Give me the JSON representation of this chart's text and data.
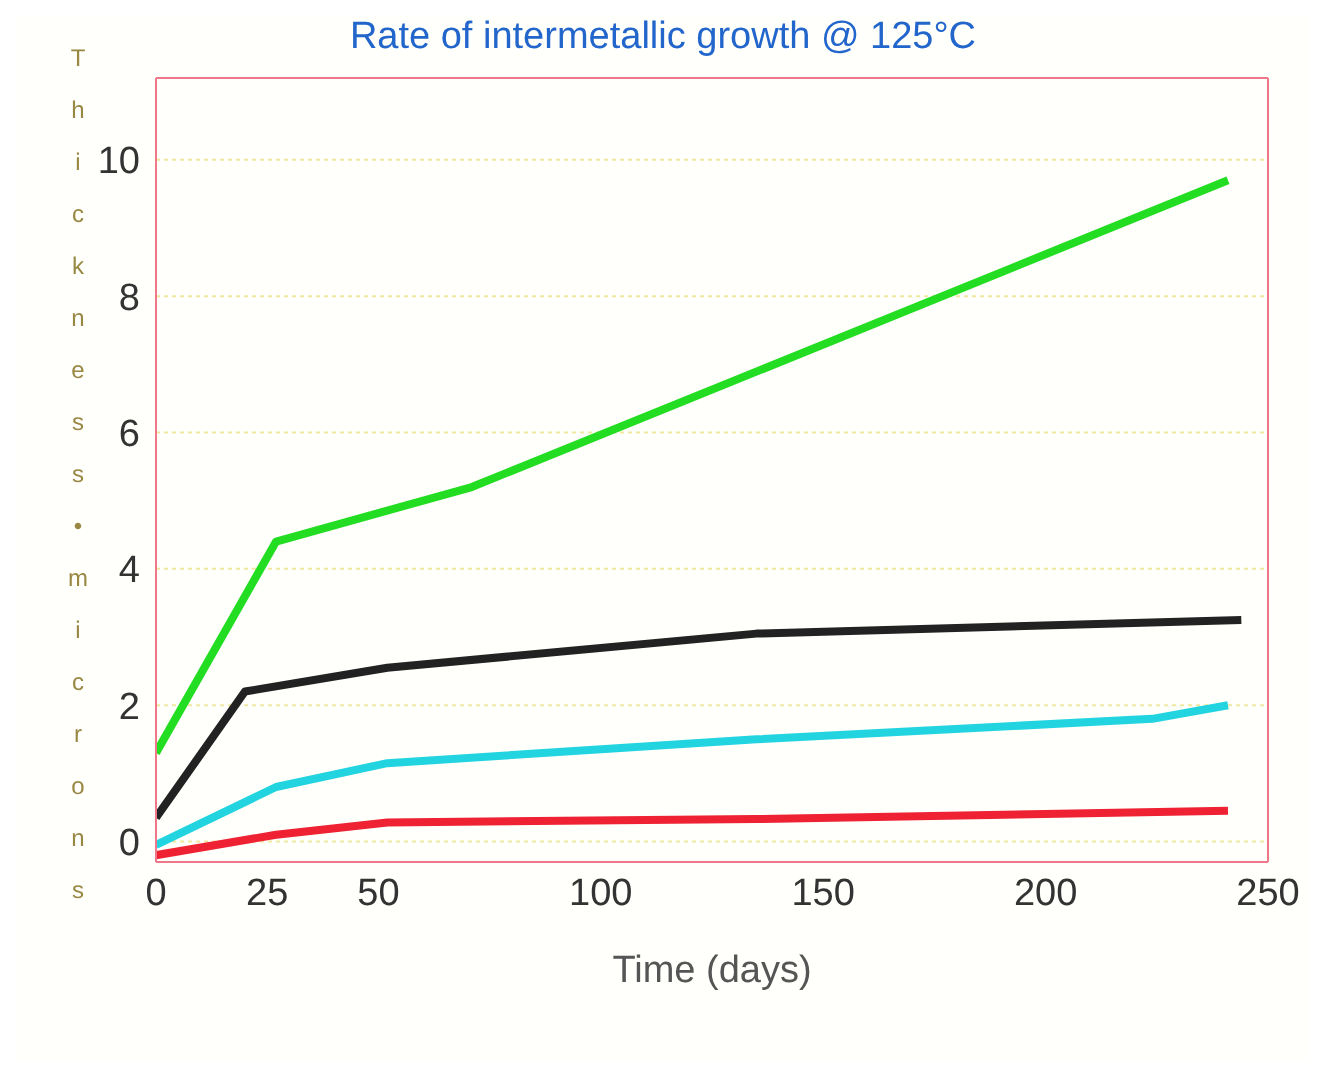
{
  "chart_data": {
    "type": "line",
    "title": "Rate of intermetallic growth @ 125°C",
    "xlabel": "Time (days)",
    "ylabel": "Thickness • microns",
    "xlim": [
      0,
      250
    ],
    "xticks": [
      0,
      25,
      50,
      100,
      150,
      200,
      250
    ],
    "ylim": [
      -0.3,
      11.2
    ],
    "yticks": [
      0,
      2,
      4,
      6,
      8,
      10
    ],
    "grid": "y",
    "marker": "none",
    "line_style": "solid",
    "series": [
      {
        "color": "#22dd22",
        "x": [
          0,
          27,
          71,
          241
        ],
        "values": [
          1.3,
          4.4,
          5.2,
          9.7
        ]
      },
      {
        "color": "#222222",
        "x": [
          0,
          20,
          52,
          135,
          244
        ],
        "values": [
          0.35,
          2.2,
          2.55,
          3.05,
          3.25
        ]
      },
      {
        "color": "#22d4e0",
        "x": [
          0,
          27,
          52,
          135,
          224,
          241
        ],
        "values": [
          -0.05,
          0.8,
          1.15,
          1.5,
          1.8,
          2.0
        ]
      },
      {
        "color": "#ee2233",
        "x": [
          0,
          27,
          52,
          135,
          241
        ],
        "values": [
          -0.2,
          0.1,
          0.28,
          0.33,
          0.45
        ]
      }
    ]
  }
}
